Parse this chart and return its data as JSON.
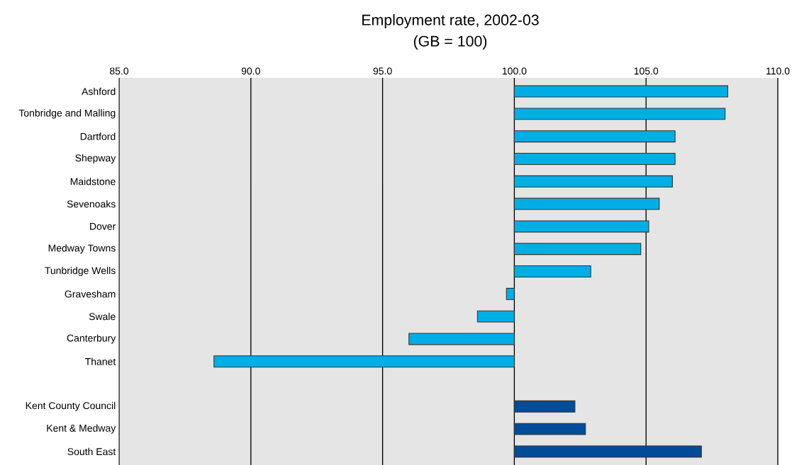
{
  "chart_data": {
    "type": "bar",
    "orientation": "horizontal",
    "title": "Employment rate, 2002-03",
    "subtitle": "(GB = 100)",
    "categories": [
      "Ashford",
      "Tonbridge and Malling",
      "Dartford",
      "Shepway",
      "Maidstone",
      "Sevenoaks",
      "Dover",
      "Medway Towns",
      "Tunbridge Wells",
      "Gravesham",
      "Swale",
      "Canterbury",
      "Thanet",
      null,
      "Kent County Council",
      "Kent & Medway",
      "South East"
    ],
    "base": [
      100,
      100,
      100,
      100,
      100,
      100,
      100,
      100,
      100,
      100,
      100,
      100,
      100,
      null,
      100,
      100,
      100
    ],
    "values": [
      8.1,
      8.0,
      6.1,
      6.1,
      6.0,
      5.5,
      5.1,
      4.8,
      2.9,
      -0.3,
      -1.4,
      -4.0,
      -11.4,
      null,
      2.3,
      2.7,
      7.1
    ],
    "colors": [
      "#00aee6",
      "#00aee6",
      "#00aee6",
      "#00aee6",
      "#00aee6",
      "#00aee6",
      "#00aee6",
      "#00aee6",
      "#00aee6",
      "#00aee6",
      "#00aee6",
      "#00aee6",
      "#00aee6",
      "#00aee6",
      "#004c99",
      "#004c99",
      "#004c99"
    ],
    "xlim": [
      85,
      110
    ],
    "xticks": [
      {
        "value": 85,
        "label": "85.0"
      },
      {
        "value": 90,
        "label": "90.0"
      },
      {
        "value": 95,
        "label": "95.0"
      },
      {
        "value": 100,
        "label": "100.0"
      },
      {
        "value": 105,
        "label": "105.0"
      },
      {
        "value": 110,
        "label": "110.0"
      }
    ],
    "grid": "x"
  }
}
